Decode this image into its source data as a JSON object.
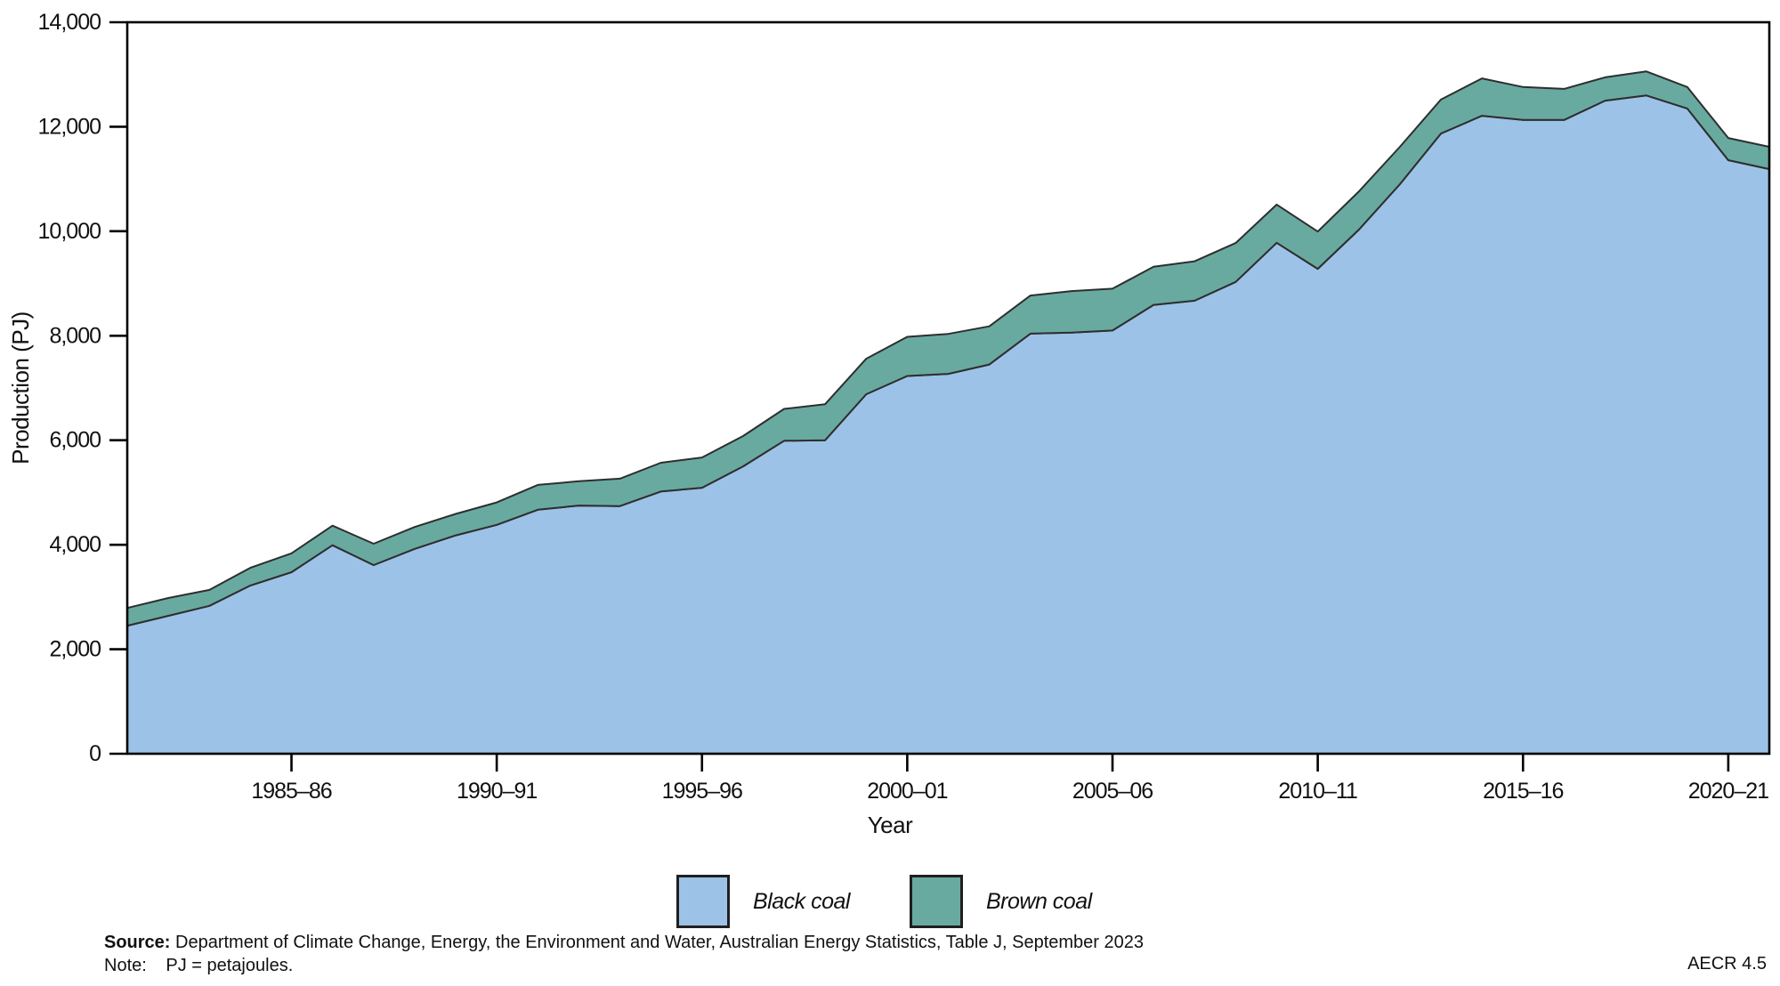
{
  "chart_data": {
    "type": "area",
    "stacked": true,
    "xlabel": "Year",
    "ylabel": "Production (PJ)",
    "ylim": [
      0,
      14000
    ],
    "grid": false,
    "frame": true,
    "legend_position": "bottom",
    "line_color": "#2e2e2e",
    "axis_color": "#000000",
    "categories": [
      "1981–82",
      "1982–83",
      "1983–84",
      "1984–85",
      "1985–86",
      "1986–87",
      "1987–88",
      "1988–89",
      "1989–90",
      "1990–91",
      "1991–92",
      "1992–93",
      "1993–94",
      "1994–95",
      "1995–96",
      "1996–97",
      "1997–98",
      "1998–99",
      "1999–00",
      "2000–01",
      "2001–02",
      "2002–03",
      "2003–04",
      "2004–05",
      "2005–06",
      "2006–07",
      "2007–08",
      "2008–09",
      "2009–10",
      "2010–11",
      "2011–12",
      "2012–13",
      "2013–14",
      "2014–15",
      "2015–16",
      "2016–17",
      "2017–18",
      "2018–19",
      "2019–20",
      "2020–21",
      "2021–22"
    ],
    "series": [
      {
        "name": "Black coal",
        "color": "#9CC2E7",
        "values": [
          2450,
          2640,
          2830,
          3220,
          3475,
          3990,
          3610,
          3920,
          4180,
          4380,
          4670,
          4750,
          4740,
          5020,
          5090,
          5500,
          5990,
          6000,
          6880,
          7230,
          7270,
          7450,
          8040,
          8060,
          8100,
          8590,
          8670,
          9030,
          9780,
          9280,
          10030,
          10900,
          11870,
          12210,
          12130,
          12130,
          12500,
          12600,
          12350,
          11360,
          11190
        ]
      },
      {
        "name": "Brown coal",
        "color": "#69AAA0",
        "values": [
          340,
          340,
          305,
          340,
          360,
          375,
          410,
          420,
          410,
          430,
          475,
          465,
          525,
          550,
          580,
          580,
          610,
          690,
          680,
          750,
          765,
          730,
          730,
          795,
          800,
          730,
          755,
          745,
          730,
          715,
          730,
          715,
          650,
          715,
          630,
          595,
          445,
          460,
          410,
          425,
          425
        ]
      }
    ],
    "y_ticks": [
      {
        "v": 0,
        "label": "0"
      },
      {
        "v": 2000,
        "label": "2,000"
      },
      {
        "v": 4000,
        "label": "4,000"
      },
      {
        "v": 6000,
        "label": "6,000"
      },
      {
        "v": 8000,
        "label": "8,000"
      },
      {
        "v": 10000,
        "label": "10,000"
      },
      {
        "v": 12000,
        "label": "12,000"
      },
      {
        "v": 14000,
        "label": "14,000"
      }
    ],
    "x_ticks": [
      {
        "i": 4,
        "label": "1985–86"
      },
      {
        "i": 9,
        "label": "1990–91"
      },
      {
        "i": 14,
        "label": "1995–96"
      },
      {
        "i": 19,
        "label": "2000–01"
      },
      {
        "i": 24,
        "label": "2005–06"
      },
      {
        "i": 29,
        "label": "2010–11"
      },
      {
        "i": 34,
        "label": "2015–16"
      },
      {
        "i": 39,
        "label": "2020–21"
      }
    ]
  },
  "legend": {
    "items": [
      {
        "label": "Black coal",
        "color": "#9CC2E7"
      },
      {
        "label": "Brown coal",
        "color": "#69AAA0"
      }
    ]
  },
  "footer": {
    "source_label": "Source:",
    "source_text": "Department of Climate Change, Energy, the Environment and Water, Australian Energy Statistics, Table J, September 2023",
    "note_label": "Note:",
    "note_text": "PJ = petajoules.",
    "code": "AECR 4.5"
  }
}
